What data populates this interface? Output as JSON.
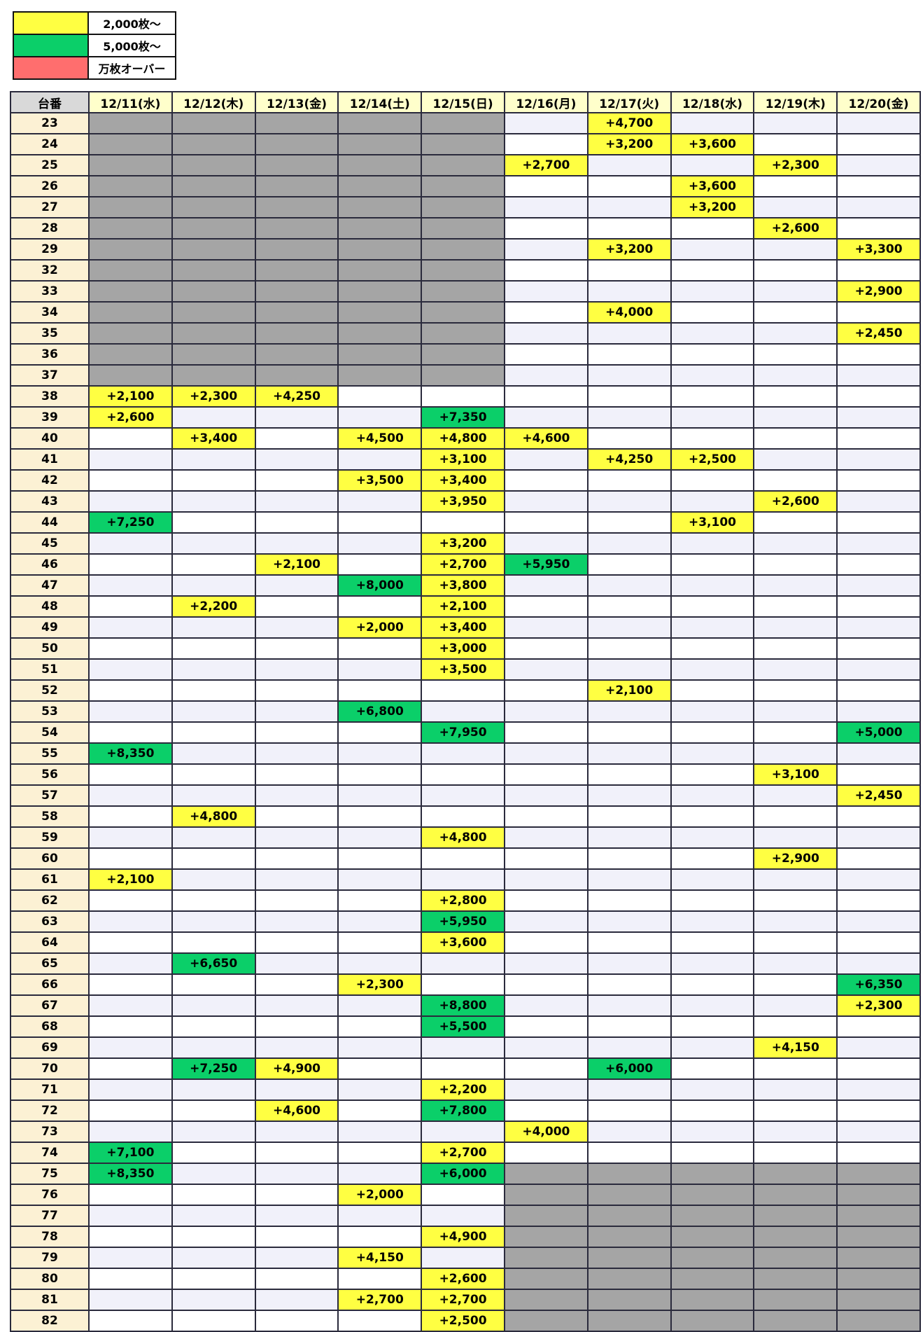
{
  "legend": {
    "items": [
      {
        "label": "2,000枚〜",
        "color": "#ffff42"
      },
      {
        "label": "5,000枚〜",
        "color": "#0bcf69"
      },
      {
        "label": "万枚オーバー",
        "color": "#ff6e6e"
      }
    ]
  },
  "colors": {
    "highlight_2000": "#ffff42",
    "highlight_5000": "#0bcf69",
    "highlight_10000": "#ff6e6e",
    "no_data_gray": "#a5a5a5",
    "header_bg": "#ffffcb",
    "corner_bg": "#d9d9d9",
    "row_header_bg": "#fcf1d4",
    "row_stripe": "#f1f1fa",
    "row_plain": "#ffffff"
  },
  "table": {
    "corner_header": "台番",
    "date_headers": [
      "12/11(水)",
      "12/12(木)",
      "12/13(金)",
      "12/14(土)",
      "12/15(日)",
      "12/16(月)",
      "12/17(火)",
      "12/18(水)",
      "12/19(木)",
      "12/20(金)"
    ],
    "cell_code_legend": {
      "y": "2000_plus_yellow",
      "G": "5000_plus_green",
      "g": "no_data_gray",
      "": "empty"
    },
    "rows": [
      {
        "no": "23",
        "cells": [
          "g",
          "g",
          "g",
          "g",
          "g",
          "",
          "y+4,700",
          "",
          "",
          ""
        ]
      },
      {
        "no": "24",
        "cells": [
          "g",
          "g",
          "g",
          "g",
          "g",
          "",
          "y+3,200",
          "y+3,600",
          "",
          ""
        ]
      },
      {
        "no": "25",
        "cells": [
          "g",
          "g",
          "g",
          "g",
          "g",
          "y+2,700",
          "",
          "",
          "y+2,300",
          ""
        ]
      },
      {
        "no": "26",
        "cells": [
          "g",
          "g",
          "g",
          "g",
          "g",
          "",
          "",
          "y+3,600",
          "",
          ""
        ]
      },
      {
        "no": "27",
        "cells": [
          "g",
          "g",
          "g",
          "g",
          "g",
          "",
          "",
          "y+3,200",
          "",
          ""
        ]
      },
      {
        "no": "28",
        "cells": [
          "g",
          "g",
          "g",
          "g",
          "g",
          "",
          "",
          "",
          "y+2,600",
          ""
        ]
      },
      {
        "no": "29",
        "cells": [
          "g",
          "g",
          "g",
          "g",
          "g",
          "",
          "y+3,200",
          "",
          "",
          "y+3,300"
        ]
      },
      {
        "no": "32",
        "cells": [
          "g",
          "g",
          "g",
          "g",
          "g",
          "",
          "",
          "",
          "",
          ""
        ]
      },
      {
        "no": "33",
        "cells": [
          "g",
          "g",
          "g",
          "g",
          "g",
          "",
          "",
          "",
          "",
          "y+2,900"
        ]
      },
      {
        "no": "34",
        "cells": [
          "g",
          "g",
          "g",
          "g",
          "g",
          "",
          "y+4,000",
          "",
          "",
          ""
        ]
      },
      {
        "no": "35",
        "cells": [
          "g",
          "g",
          "g",
          "g",
          "g",
          "",
          "",
          "",
          "",
          "y+2,450"
        ]
      },
      {
        "no": "36",
        "cells": [
          "g",
          "g",
          "g",
          "g",
          "g",
          "",
          "",
          "",
          "",
          ""
        ]
      },
      {
        "no": "37",
        "cells": [
          "g",
          "g",
          "g",
          "g",
          "g",
          "",
          "",
          "",
          "",
          ""
        ]
      },
      {
        "no": "38",
        "cells": [
          "y+2,100",
          "y+2,300",
          "y+4,250",
          "",
          "",
          "",
          "",
          "",
          "",
          ""
        ]
      },
      {
        "no": "39",
        "cells": [
          "y+2,600",
          "",
          "",
          "",
          "G+7,350",
          "",
          "",
          "",
          "",
          ""
        ]
      },
      {
        "no": "40",
        "cells": [
          "",
          "y+3,400",
          "",
          "y+4,500",
          "y+4,800",
          "y+4,600",
          "",
          "",
          "",
          ""
        ]
      },
      {
        "no": "41",
        "cells": [
          "",
          "",
          "",
          "",
          "y+3,100",
          "",
          "y+4,250",
          "y+2,500",
          "",
          ""
        ]
      },
      {
        "no": "42",
        "cells": [
          "",
          "",
          "",
          "y+3,500",
          "y+3,400",
          "",
          "",
          "",
          "",
          ""
        ]
      },
      {
        "no": "43",
        "cells": [
          "",
          "",
          "",
          "",
          "y+3,950",
          "",
          "",
          "",
          "y+2,600",
          ""
        ]
      },
      {
        "no": "44",
        "cells": [
          "G+7,250",
          "",
          "",
          "",
          "",
          "",
          "",
          "y+3,100",
          "",
          ""
        ]
      },
      {
        "no": "45",
        "cells": [
          "",
          "",
          "",
          "",
          "y+3,200",
          "",
          "",
          "",
          "",
          ""
        ]
      },
      {
        "no": "46",
        "cells": [
          "",
          "",
          "y+2,100",
          "",
          "y+2,700",
          "G+5,950",
          "",
          "",
          "",
          ""
        ]
      },
      {
        "no": "47",
        "cells": [
          "",
          "",
          "",
          "G+8,000",
          "y+3,800",
          "",
          "",
          "",
          "",
          ""
        ]
      },
      {
        "no": "48",
        "cells": [
          "",
          "y+2,200",
          "",
          "",
          "y+2,100",
          "",
          "",
          "",
          "",
          ""
        ]
      },
      {
        "no": "49",
        "cells": [
          "",
          "",
          "",
          "y+2,000",
          "y+3,400",
          "",
          "",
          "",
          "",
          ""
        ]
      },
      {
        "no": "50",
        "cells": [
          "",
          "",
          "",
          "",
          "y+3,000",
          "",
          "",
          "",
          "",
          ""
        ]
      },
      {
        "no": "51",
        "cells": [
          "",
          "",
          "",
          "",
          "y+3,500",
          "",
          "",
          "",
          "",
          ""
        ]
      },
      {
        "no": "52",
        "cells": [
          "",
          "",
          "",
          "",
          "",
          "",
          "y+2,100",
          "",
          "",
          ""
        ]
      },
      {
        "no": "53",
        "cells": [
          "",
          "",
          "",
          "G+6,800",
          "",
          "",
          "",
          "",
          "",
          ""
        ]
      },
      {
        "no": "54",
        "cells": [
          "",
          "",
          "",
          "",
          "G+7,950",
          "",
          "",
          "",
          "",
          "G+5,000"
        ]
      },
      {
        "no": "55",
        "cells": [
          "G+8,350",
          "",
          "",
          "",
          "",
          "",
          "",
          "",
          "",
          ""
        ]
      },
      {
        "no": "56",
        "cells": [
          "",
          "",
          "",
          "",
          "",
          "",
          "",
          "",
          "y+3,100",
          ""
        ]
      },
      {
        "no": "57",
        "cells": [
          "",
          "",
          "",
          "",
          "",
          "",
          "",
          "",
          "",
          "y+2,450"
        ]
      },
      {
        "no": "58",
        "cells": [
          "",
          "y+4,800",
          "",
          "",
          "",
          "",
          "",
          "",
          "",
          ""
        ]
      },
      {
        "no": "59",
        "cells": [
          "",
          "",
          "",
          "",
          "y+4,800",
          "",
          "",
          "",
          "",
          ""
        ]
      },
      {
        "no": "60",
        "cells": [
          "",
          "",
          "",
          "",
          "",
          "",
          "",
          "",
          "y+2,900",
          ""
        ]
      },
      {
        "no": "61",
        "cells": [
          "y+2,100",
          "",
          "",
          "",
          "",
          "",
          "",
          "",
          "",
          ""
        ]
      },
      {
        "no": "62",
        "cells": [
          "",
          "",
          "",
          "",
          "y+2,800",
          "",
          "",
          "",
          "",
          ""
        ]
      },
      {
        "no": "63",
        "cells": [
          "",
          "",
          "",
          "",
          "G+5,950",
          "",
          "",
          "",
          "",
          ""
        ]
      },
      {
        "no": "64",
        "cells": [
          "",
          "",
          "",
          "",
          "y+3,600",
          "",
          "",
          "",
          "",
          ""
        ]
      },
      {
        "no": "65",
        "cells": [
          "",
          "G+6,650",
          "",
          "",
          "",
          "",
          "",
          "",
          "",
          ""
        ]
      },
      {
        "no": "66",
        "cells": [
          "",
          "",
          "",
          "y+2,300",
          "",
          "",
          "",
          "",
          "",
          "G+6,350"
        ]
      },
      {
        "no": "67",
        "cells": [
          "",
          "",
          "",
          "",
          "G+8,800",
          "",
          "",
          "",
          "",
          "y+2,300"
        ]
      },
      {
        "no": "68",
        "cells": [
          "",
          "",
          "",
          "",
          "G+5,500",
          "",
          "",
          "",
          "",
          ""
        ]
      },
      {
        "no": "69",
        "cells": [
          "",
          "",
          "",
          "",
          "",
          "",
          "",
          "",
          "y+4,150",
          ""
        ]
      },
      {
        "no": "70",
        "cells": [
          "",
          "G+7,250",
          "y+4,900",
          "",
          "",
          "",
          "G+6,000",
          "",
          "",
          ""
        ]
      },
      {
        "no": "71",
        "cells": [
          "",
          "",
          "",
          "",
          "y+2,200",
          "",
          "",
          "",
          "",
          ""
        ]
      },
      {
        "no": "72",
        "cells": [
          "",
          "",
          "y+4,600",
          "",
          "G+7,800",
          "",
          "",
          "",
          "",
          ""
        ]
      },
      {
        "no": "73",
        "cells": [
          "",
          "",
          "",
          "",
          "",
          "y+4,000",
          "",
          "",
          "",
          ""
        ]
      },
      {
        "no": "74",
        "cells": [
          "G+7,100",
          "",
          "",
          "",
          "y+2,700",
          "",
          "",
          "",
          "",
          ""
        ]
      },
      {
        "no": "75",
        "cells": [
          "G+8,350",
          "",
          "",
          "",
          "G+6,000",
          "g",
          "g",
          "g",
          "g",
          "g"
        ]
      },
      {
        "no": "76",
        "cells": [
          "",
          "",
          "",
          "y+2,000",
          "",
          "g",
          "g",
          "g",
          "g",
          "g"
        ]
      },
      {
        "no": "77",
        "cells": [
          "",
          "",
          "",
          "",
          "",
          "g",
          "g",
          "g",
          "g",
          "g"
        ]
      },
      {
        "no": "78",
        "cells": [
          "",
          "",
          "",
          "",
          "y+4,900",
          "g",
          "g",
          "g",
          "g",
          "g"
        ]
      },
      {
        "no": "79",
        "cells": [
          "",
          "",
          "",
          "y+4,150",
          "",
          "g",
          "g",
          "g",
          "g",
          "g"
        ]
      },
      {
        "no": "80",
        "cells": [
          "",
          "",
          "",
          "",
          "y+2,600",
          "g",
          "g",
          "g",
          "g",
          "g"
        ]
      },
      {
        "no": "81",
        "cells": [
          "",
          "",
          "",
          "y+2,700",
          "y+2,700",
          "g",
          "g",
          "g",
          "g",
          "g"
        ]
      },
      {
        "no": "82",
        "cells": [
          "",
          "",
          "",
          "",
          "y+2,500",
          "g",
          "g",
          "g",
          "g",
          "g"
        ]
      }
    ]
  }
}
